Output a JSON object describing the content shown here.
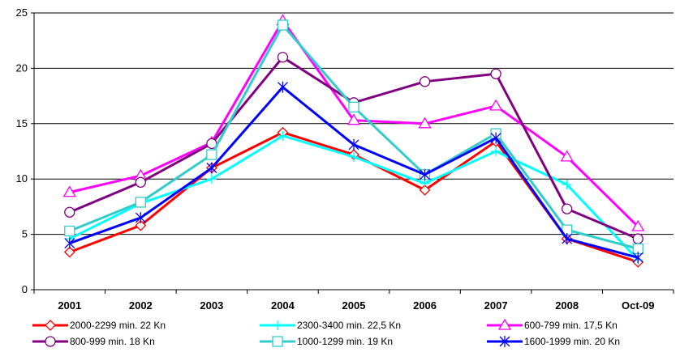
{
  "chart_data": {
    "type": "line",
    "categories": [
      "2001",
      "2002",
      "2003",
      "2004",
      "2005",
      "2006",
      "2007",
      "2008",
      "Oct-09"
    ],
    "ylim": [
      0,
      25
    ],
    "yticks": [
      "0",
      "5",
      "10",
      "15",
      "20",
      "25"
    ],
    "grid": "horizontal",
    "legend_position": "bottom",
    "series": [
      {
        "name": "2000-2299 min. 22 Kn",
        "color": "#ff0000",
        "marker": "diamond",
        "values": [
          3.4,
          5.8,
          11.0,
          14.2,
          12.2,
          9.0,
          13.4,
          4.6,
          2.5
        ]
      },
      {
        "name": "2300-3400 min. 22,5 Kn",
        "color": "#00ffff",
        "marker": "plus",
        "values": [
          4.6,
          7.8,
          10.0,
          13.9,
          12.0,
          9.6,
          12.5,
          9.5,
          2.7
        ]
      },
      {
        "name": "600-799 min. 17,5 Kn",
        "color": "#ff00ff",
        "marker": "triangle",
        "values": [
          8.8,
          10.3,
          13.3,
          24.3,
          15.3,
          15.0,
          16.6,
          12.0,
          5.7
        ]
      },
      {
        "name": "800-999 min. 18 Kn",
        "color": "#800080",
        "marker": "circle",
        "values": [
          7.0,
          9.7,
          13.2,
          21.0,
          16.9,
          18.8,
          19.5,
          7.3,
          4.6
        ]
      },
      {
        "name": "1000-1299 min. 19 Kn",
        "color": "#33cccc",
        "marker": "square",
        "values": [
          5.3,
          7.9,
          12.2,
          23.9,
          16.5,
          10.4,
          14.1,
          5.4,
          3.7
        ]
      },
      {
        "name": "1600-1999 min. 20 Kn",
        "color": "#0000ff",
        "marker": "star",
        "values": [
          4.2,
          6.5,
          11.0,
          18.3,
          13.1,
          10.4,
          13.7,
          4.6,
          2.9
        ]
      }
    ]
  }
}
